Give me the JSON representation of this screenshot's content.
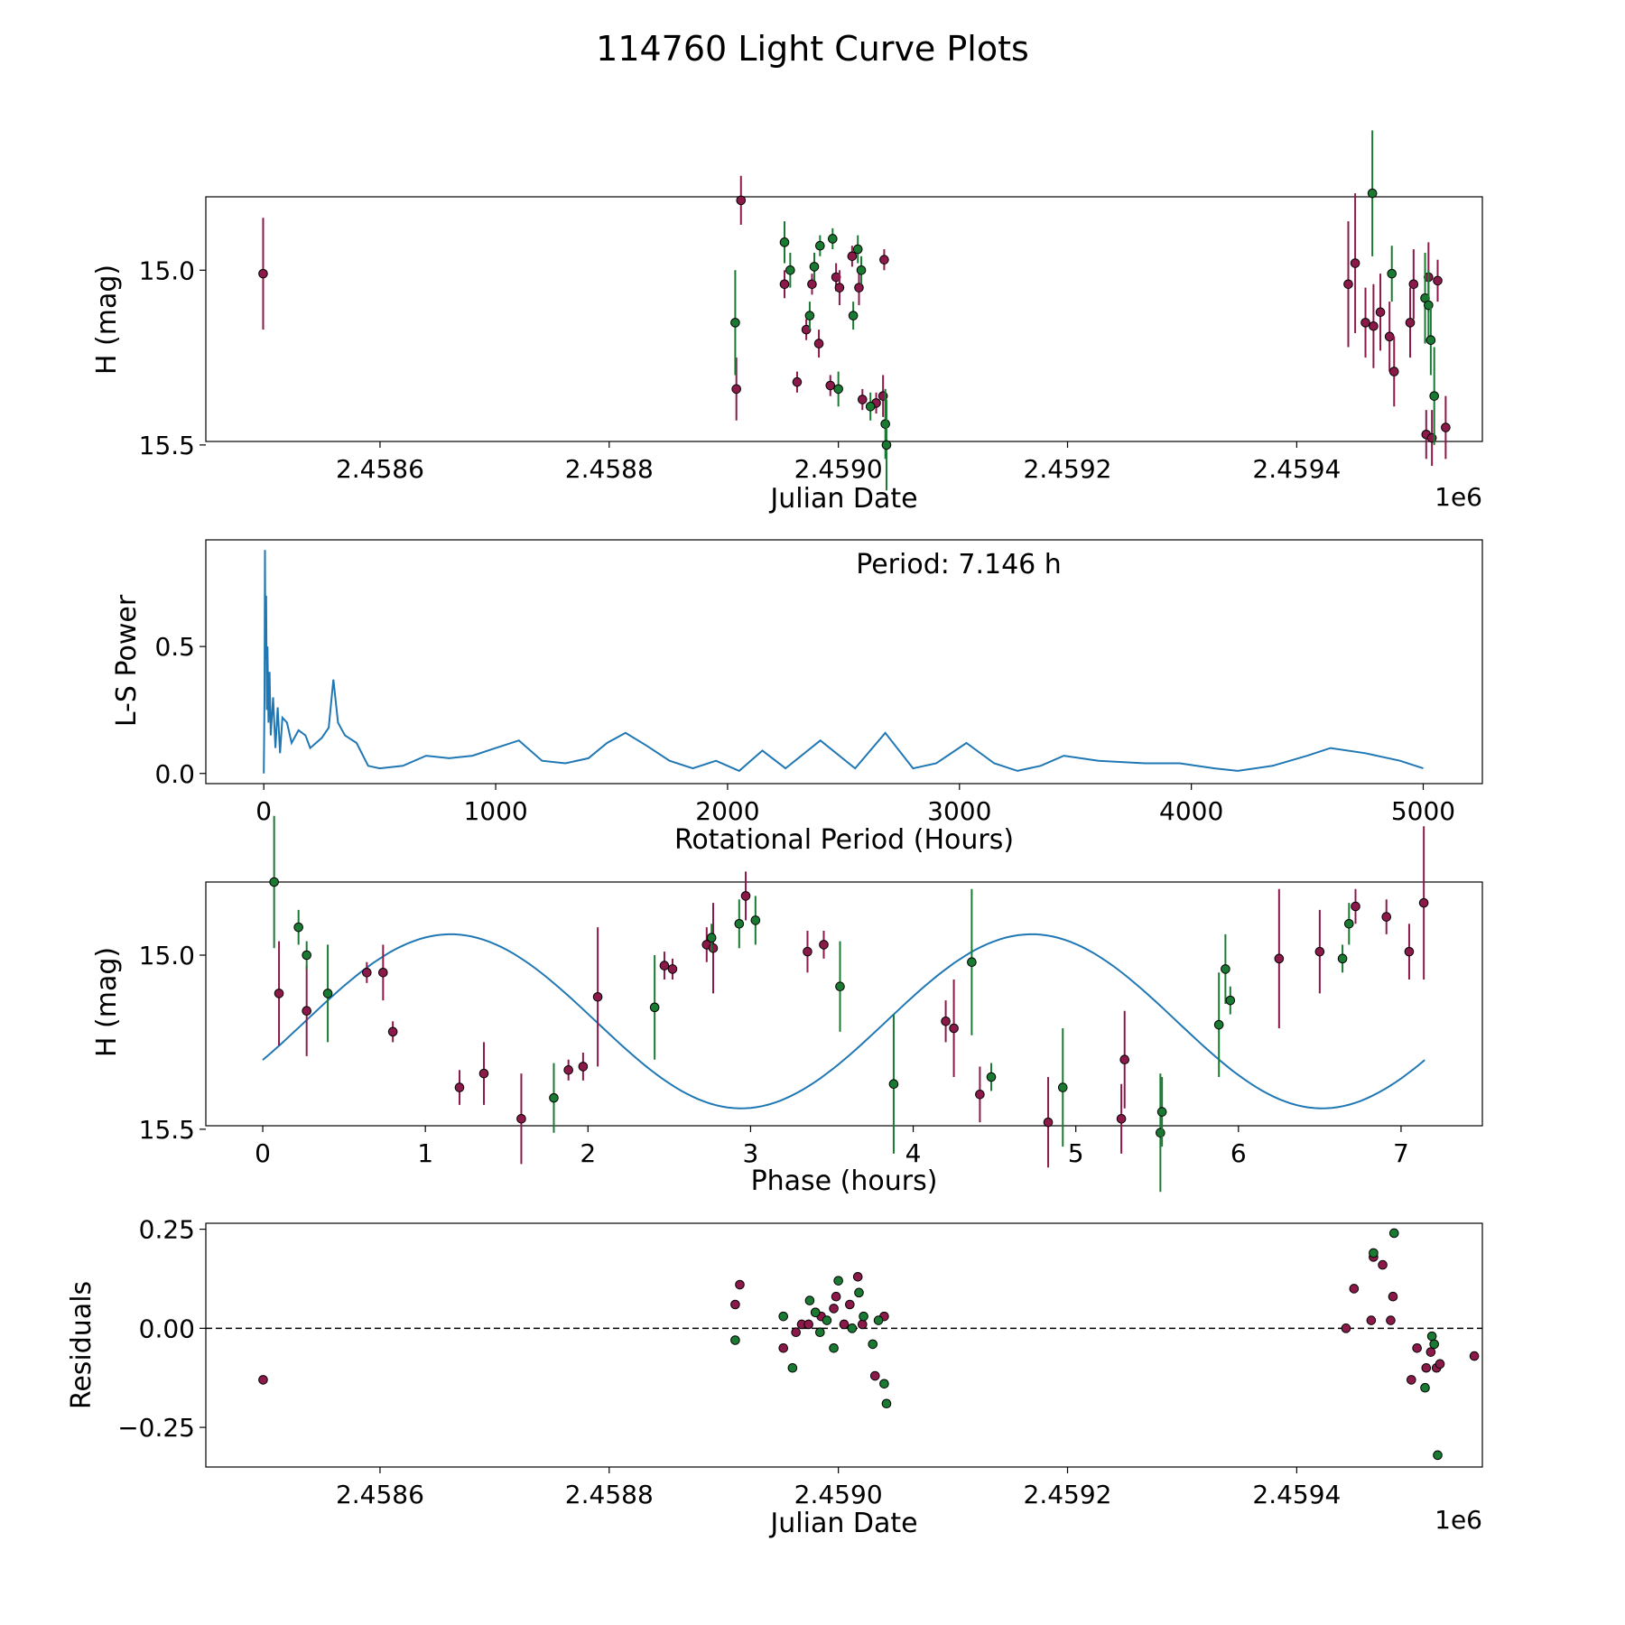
{
  "title": "114760 Light Curve Plots",
  "colors": {
    "red_points": "#8b1a4a",
    "green_points": "#1a7a32",
    "curve": "#1f77b4",
    "frame": "#000000"
  },
  "chart_data": [
    {
      "id": "lightcurve",
      "type": "scatter",
      "xlabel": "Julian Date",
      "ylabel": "H (mag)",
      "offset_label": "1e6",
      "xlim": [
        2458448,
        2459562
      ],
      "ylim": [
        15.49,
        14.79
      ],
      "y_inverted": true,
      "xticks": [
        2458600,
        2458800,
        2459000,
        2459200,
        2459400
      ],
      "xtick_labels": [
        "2.4586",
        "2.4588",
        "2.4590",
        "2.4592",
        "2.4594"
      ],
      "yticks": [
        15.0,
        15.5
      ],
      "ytick_labels": [
        "15.0",
        "15.5"
      ],
      "series": [
        {
          "name": "red",
          "color": "#8b1a4a",
          "points": [
            [
              2458498,
              15.01,
              0.16
            ],
            [
              2458911,
              15.34,
              0.09
            ],
            [
              2458915,
              14.8,
              0.07
            ],
            [
              2458953,
              15.04,
              0.04
            ],
            [
              2458964,
              15.32,
              0.03
            ],
            [
              2458972,
              15.17,
              0.03
            ],
            [
              2458977,
              15.04,
              0.03
            ],
            [
              2458983,
              15.21,
              0.04
            ],
            [
              2458993,
              15.33,
              0.03
            ],
            [
              2458998,
              15.02,
              0.04
            ],
            [
              2459001,
              15.05,
              0.05
            ],
            [
              2459012,
              14.96,
              0.03
            ],
            [
              2459018,
              15.05,
              0.05
            ],
            [
              2459021,
              15.37,
              0.03
            ],
            [
              2459033,
              15.38,
              0.03
            ],
            [
              2459039,
              15.36,
              0.06
            ],
            [
              2459040,
              14.97,
              0.03
            ],
            [
              2459445,
              15.04,
              0.18
            ],
            [
              2459451,
              14.98,
              0.2
            ],
            [
              2459460,
              15.15,
              0.1
            ],
            [
              2459467,
              15.16,
              0.12
            ],
            [
              2459473,
              15.12,
              0.11
            ],
            [
              2459481,
              15.19,
              0.1
            ],
            [
              2459485,
              15.29,
              0.1
            ],
            [
              2459499,
              15.15,
              0.1
            ],
            [
              2459502,
              15.04,
              0.1
            ],
            [
              2459513,
              15.47,
              0.07
            ],
            [
              2459515,
              15.02,
              0.1
            ],
            [
              2459518,
              15.48,
              0.08
            ],
            [
              2459523,
              15.03,
              0.06
            ],
            [
              2459530,
              15.45,
              0.09
            ]
          ]
        },
        {
          "name": "green",
          "color": "#1a7a32",
          "points": [
            [
              2458910,
              15.15,
              0.15
            ],
            [
              2458953,
              14.92,
              0.06
            ],
            [
              2458958,
              15.0,
              0.05
            ],
            [
              2458975,
              15.13,
              0.04
            ],
            [
              2458979,
              14.99,
              0.04
            ],
            [
              2458984,
              14.93,
              0.03
            ],
            [
              2458995,
              14.91,
              0.03
            ],
            [
              2459000,
              15.34,
              0.05
            ],
            [
              2459013,
              15.13,
              0.04
            ],
            [
              2459017,
              14.94,
              0.04
            ],
            [
              2459020,
              15.0,
              0.04
            ],
            [
              2459028,
              15.39,
              0.04
            ],
            [
              2459041,
              15.44,
              0.1
            ],
            [
              2459042,
              15.5,
              0.13
            ],
            [
              2459466,
              14.78,
              0.18
            ],
            [
              2459483,
              15.01,
              0.08
            ],
            [
              2459512,
              15.08,
              0.13
            ],
            [
              2459515,
              15.1,
              0.1
            ],
            [
              2459517,
              15.2,
              0.1
            ],
            [
              2459520,
              15.36,
              0.14
            ]
          ]
        }
      ]
    },
    {
      "id": "periodogram",
      "type": "line",
      "xlabel": "Rotational Period (Hours)",
      "ylabel": "L-S Power",
      "annotation": "Period: 7.146 h",
      "xlim": [
        -250,
        5255
      ],
      "ylim": [
        -0.04,
        0.92
      ],
      "xticks": [
        0,
        1000,
        2000,
        3000,
        4000,
        5000
      ],
      "xtick_labels": [
        "0",
        "1000",
        "2000",
        "3000",
        "4000",
        "5000"
      ],
      "yticks": [
        0.0,
        0.5
      ],
      "ytick_labels": [
        "0.0",
        "0.5"
      ],
      "series": [
        {
          "name": "power",
          "x": [
            0,
            3,
            5,
            7,
            10,
            13,
            16,
            20,
            25,
            30,
            40,
            50,
            60,
            70,
            80,
            100,
            120,
            150,
            180,
            200,
            250,
            280,
            300,
            320,
            350,
            400,
            450,
            500,
            600,
            700,
            800,
            900,
            1000,
            1100,
            1200,
            1300,
            1400,
            1480,
            1560,
            1650,
            1750,
            1850,
            1950,
            2050,
            2150,
            2250,
            2400,
            2550,
            2680,
            2800,
            2900,
            3030,
            3150,
            3250,
            3350,
            3450,
            3600,
            3800,
            3950,
            4100,
            4200,
            4350,
            4500,
            4600,
            4750,
            4900,
            5000
          ],
          "y": [
            0.0,
            0.3,
            0.88,
            0.45,
            0.7,
            0.25,
            0.5,
            0.2,
            0.4,
            0.15,
            0.3,
            0.1,
            0.26,
            0.08,
            0.22,
            0.2,
            0.12,
            0.17,
            0.15,
            0.1,
            0.14,
            0.18,
            0.37,
            0.2,
            0.15,
            0.12,
            0.03,
            0.02,
            0.03,
            0.07,
            0.06,
            0.07,
            0.1,
            0.13,
            0.05,
            0.04,
            0.06,
            0.12,
            0.16,
            0.11,
            0.05,
            0.02,
            0.05,
            0.01,
            0.09,
            0.02,
            0.13,
            0.02,
            0.16,
            0.02,
            0.04,
            0.12,
            0.04,
            0.01,
            0.03,
            0.07,
            0.05,
            0.04,
            0.04,
            0.02,
            0.01,
            0.03,
            0.07,
            0.1,
            0.08,
            0.05,
            0.02
          ]
        }
      ]
    },
    {
      "id": "phased",
      "type": "scatter",
      "xlabel": "Phase (hours)",
      "ylabel": "H (mag)",
      "xlim": [
        -0.35,
        7.5
      ],
      "ylim": [
        15.49,
        14.79
      ],
      "y_inverted": true,
      "xticks": [
        0,
        1,
        2,
        3,
        4,
        5,
        6,
        7
      ],
      "xtick_labels": [
        "0",
        "1",
        "2",
        "3",
        "4",
        "5",
        "6",
        "7"
      ],
      "yticks": [
        15.0,
        15.5
      ],
      "ytick_labels": [
        "15.0",
        "15.5"
      ],
      "fit": {
        "mean": 15.19,
        "amplitude": 0.25,
        "period": 3.573,
        "phase_shift": 0.55,
        "xmax": 7.146
      },
      "series": [
        {
          "name": "red",
          "color": "#8b1a4a",
          "points": [
            [
              0.1,
              15.11,
              0.15
            ],
            [
              0.27,
              15.16,
              0.13
            ],
            [
              0.64,
              15.05,
              0.03
            ],
            [
              0.74,
              15.05,
              0.08
            ],
            [
              0.8,
              15.22,
              0.03
            ],
            [
              1.21,
              15.38,
              0.05
            ],
            [
              1.36,
              15.34,
              0.09
            ],
            [
              1.59,
              15.47,
              0.13
            ],
            [
              1.88,
              15.33,
              0.03
            ],
            [
              1.97,
              15.32,
              0.04
            ],
            [
              2.06,
              15.12,
              0.2
            ],
            [
              2.47,
              15.03,
              0.04
            ],
            [
              2.52,
              15.04,
              0.03
            ],
            [
              2.73,
              14.97,
              0.05
            ],
            [
              2.77,
              14.98,
              0.13
            ],
            [
              2.97,
              14.83,
              0.07
            ],
            [
              3.35,
              14.99,
              0.06
            ],
            [
              3.45,
              14.97,
              0.04
            ],
            [
              4.2,
              15.19,
              0.06
            ],
            [
              4.25,
              15.21,
              0.14
            ],
            [
              4.41,
              15.4,
              0.08
            ],
            [
              4.83,
              15.48,
              0.13
            ],
            [
              5.28,
              15.47,
              0.1
            ],
            [
              5.3,
              15.3,
              0.14
            ],
            [
              6.25,
              15.01,
              0.2
            ],
            [
              6.5,
              14.99,
              0.12
            ],
            [
              6.72,
              14.86,
              0.05
            ],
            [
              6.91,
              14.89,
              0.05
            ],
            [
              7.05,
              14.99,
              0.08
            ],
            [
              7.14,
              14.85,
              0.22
            ]
          ]
        },
        {
          "name": "green",
          "color": "#1a7a32",
          "points": [
            [
              0.07,
              14.79,
              0.19
            ],
            [
              0.22,
              14.92,
              0.05
            ],
            [
              0.27,
              15.0,
              0.04
            ],
            [
              0.4,
              15.11,
              0.14
            ],
            [
              1.79,
              15.41,
              0.1
            ],
            [
              2.41,
              15.15,
              0.15
            ],
            [
              2.76,
              14.95,
              0.04
            ],
            [
              2.93,
              14.91,
              0.07
            ],
            [
              3.03,
              14.9,
              0.07
            ],
            [
              3.55,
              15.09,
              0.13
            ],
            [
              3.88,
              15.37,
              0.2
            ],
            [
              4.36,
              15.02,
              0.21
            ],
            [
              4.48,
              15.35,
              0.04
            ],
            [
              4.92,
              15.38,
              0.17
            ],
            [
              5.52,
              15.51,
              0.17
            ],
            [
              5.53,
              15.45,
              0.1
            ],
            [
              5.88,
              15.2,
              0.15
            ],
            [
              5.92,
              15.04,
              0.1
            ],
            [
              5.95,
              15.13,
              0.04
            ],
            [
              6.64,
              15.01,
              0.04
            ],
            [
              6.68,
              14.91,
              0.06
            ]
          ]
        }
      ]
    },
    {
      "id": "residuals",
      "type": "scatter",
      "xlabel": "Julian Date",
      "ylabel": "Residuals",
      "offset_label": "1e6",
      "xlim": [
        2458448,
        2459562
      ],
      "ylim": [
        -0.35,
        0.265
      ],
      "zero_line": true,
      "xticks": [
        2458600,
        2458800,
        2459000,
        2459200,
        2459400
      ],
      "xtick_labels": [
        "2.4586",
        "2.4588",
        "2.4590",
        "2.4592",
        "2.4594"
      ],
      "yticks": [
        0.25,
        0.0,
        -0.25
      ],
      "ytick_labels": [
        "0.25",
        "0.00",
        "−0.25"
      ],
      "series": [
        {
          "name": "red",
          "color": "#8b1a4a",
          "points": [
            [
              2458498,
              -0.13
            ],
            [
              2458910,
              0.06
            ],
            [
              2458914,
              0.11
            ],
            [
              2458952,
              -0.05
            ],
            [
              2458963,
              -0.01
            ],
            [
              2458968,
              0.01
            ],
            [
              2458974,
              0.01
            ],
            [
              2458980,
              0.04
            ],
            [
              2458985,
              0.03
            ],
            [
              2458996,
              0.05
            ],
            [
              2458998,
              0.08
            ],
            [
              2459005,
              0.01
            ],
            [
              2459010,
              0.06
            ],
            [
              2459017,
              0.13
            ],
            [
              2459021,
              0.01
            ],
            [
              2459032,
              -0.12
            ],
            [
              2459040,
              0.03
            ],
            [
              2459443,
              0.0
            ],
            [
              2459450,
              0.1
            ],
            [
              2459465,
              0.02
            ],
            [
              2459467,
              0.18
            ],
            [
              2459475,
              0.16
            ],
            [
              2459482,
              0.02
            ],
            [
              2459484,
              0.08
            ],
            [
              2459500,
              -0.13
            ],
            [
              2459505,
              -0.05
            ],
            [
              2459513,
              -0.1
            ],
            [
              2459517,
              -0.06
            ],
            [
              2459522,
              -0.1
            ],
            [
              2459525,
              -0.09
            ],
            [
              2459555,
              -0.07
            ]
          ]
        },
        {
          "name": "green",
          "color": "#1a7a32",
          "points": [
            [
              2458910,
              -0.03
            ],
            [
              2458952,
              0.03
            ],
            [
              2458960,
              -0.1
            ],
            [
              2458975,
              0.07
            ],
            [
              2458980,
              0.04
            ],
            [
              2458984,
              -0.01
            ],
            [
              2458990,
              0.02
            ],
            [
              2458996,
              -0.05
            ],
            [
              2459000,
              0.12
            ],
            [
              2459012,
              0.0
            ],
            [
              2459018,
              0.09
            ],
            [
              2459022,
              0.03
            ],
            [
              2459030,
              -0.04
            ],
            [
              2459035,
              0.02
            ],
            [
              2459040,
              -0.14
            ],
            [
              2459042,
              -0.19
            ],
            [
              2459467,
              0.19
            ],
            [
              2459485,
              0.24
            ],
            [
              2459512,
              -0.15
            ],
            [
              2459518,
              -0.02
            ],
            [
              2459520,
              -0.04
            ],
            [
              2459523,
              -0.32
            ]
          ]
        }
      ]
    }
  ]
}
